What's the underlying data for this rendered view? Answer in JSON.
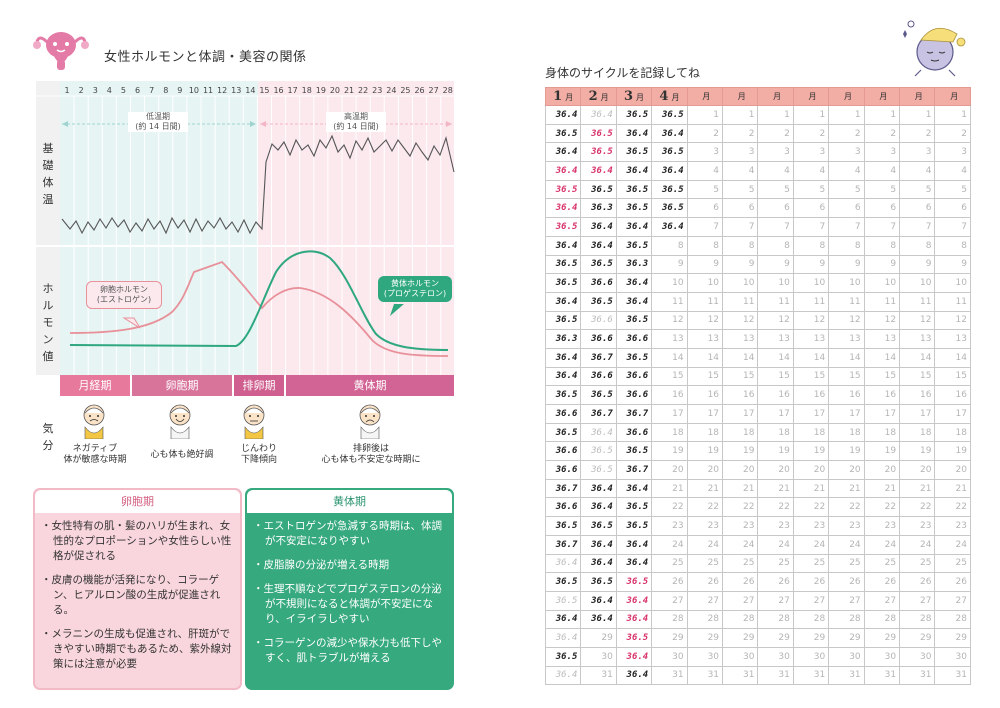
{
  "left": {
    "title": "女性ホルモンと体調・美容の関係",
    "y_labels": {
      "temp": "基礎体温",
      "hormone": "ホルモン値",
      "mood": "気分"
    },
    "days": [
      "1",
      "2",
      "3",
      "4",
      "5",
      "6",
      "7",
      "8",
      "9",
      "10",
      "11",
      "12",
      "13",
      "14",
      "15",
      "16",
      "17",
      "18",
      "19",
      "20",
      "21",
      "22",
      "23",
      "24",
      "25",
      "26",
      "27",
      "28"
    ],
    "low_phase": {
      "name": "低温期",
      "duration": "(約 14 日間)"
    },
    "high_phase": {
      "name": "高温期",
      "duration": "(約 14 日間)"
    },
    "estrogen": {
      "name": "卵胞ホルモン",
      "sub": "(エストロゲン)",
      "color": "#e8919a"
    },
    "progesterone": {
      "name": "黄体ホルモン",
      "sub": "(プロゲステロン)",
      "color": "#2fa880"
    },
    "phases": [
      "月経期",
      "卵胞期",
      "排卵期",
      "黄体期"
    ],
    "moods": [
      {
        "line1": "ネガティブ",
        "line2": "体が敏感な時期"
      },
      {
        "line1": "心も体も絶好調",
        "line2": ""
      },
      {
        "line1": "じんわり",
        "line2": "下降傾向"
      },
      {
        "line1": "排卵後は",
        "line2": "心も体も不安定な時期に"
      }
    ],
    "follicular_card": {
      "title": "卵胞期",
      "items": [
        "・女性特有の肌・髪のハリが生まれ、女性的なプロポーションや女性らしい性格が促される",
        "・皮膚の機能が活発になり、コラーゲン、ヒアルロン酸の生成が促進される。",
        "・メラニンの生成も促進され、肝斑ができやすい時期でもあるため、紫外線対策には注意が必要"
      ]
    },
    "luteal_card": {
      "title": "黄体期",
      "items": [
        "・エストロゲンが急減する時期は、体調が不安定になりやすい",
        "・皮脂腺の分泌が増える時期",
        "・生理不順などでプロゲステロンの分泌が不規則になると体調が不安定になり、イライラしやすい",
        "・コラーゲンの減少や保水力も低下しやすく、肌トラブルが増える"
      ]
    }
  },
  "right": {
    "title": "身体のサイクルを記録してね",
    "month_suffix": "月",
    "months": [
      "1",
      "2",
      "3",
      "4",
      "",
      "",
      "",
      "",
      "",
      "",
      "",
      ""
    ],
    "temps": [
      [
        "36.4",
        "36.4",
        "36.5",
        "36.5"
      ],
      [
        "36.5",
        "36.5",
        "36.4",
        "36.4"
      ],
      [
        "36.4",
        "36.5",
        "36.5",
        "36.5"
      ],
      [
        "36.4",
        "36.4",
        "36.4",
        "36.4"
      ],
      [
        "36.5",
        "36.5",
        "36.5",
        "36.5"
      ],
      [
        "36.4",
        "36.3",
        "36.5",
        "36.5"
      ],
      [
        "36.5",
        "36.4",
        "36.4",
        "36.4"
      ],
      [
        "36.4",
        "36.4",
        "36.5",
        ""
      ],
      [
        "36.5",
        "36.5",
        "36.3",
        ""
      ],
      [
        "36.5",
        "36.6",
        "36.4",
        ""
      ],
      [
        "36.4",
        "36.5",
        "36.4",
        ""
      ],
      [
        "36.5",
        "36.6",
        "36.5",
        ""
      ],
      [
        "36.3",
        "36.6",
        "36.6",
        ""
      ],
      [
        "36.4",
        "36.7",
        "36.5",
        ""
      ],
      [
        "36.4",
        "36.6",
        "36.6",
        ""
      ],
      [
        "36.5",
        "36.5",
        "36.6",
        ""
      ],
      [
        "36.6",
        "36.7",
        "36.7",
        ""
      ],
      [
        "36.5",
        "36.4",
        "36.6",
        ""
      ],
      [
        "36.6",
        "36.5",
        "36.5",
        ""
      ],
      [
        "36.6",
        "36.5",
        "36.7",
        ""
      ],
      [
        "36.7",
        "36.4",
        "36.4",
        ""
      ],
      [
        "36.6",
        "36.4",
        "36.5",
        ""
      ],
      [
        "36.5",
        "36.5",
        "36.5",
        ""
      ],
      [
        "36.7",
        "36.4",
        "36.4",
        ""
      ],
      [
        "36.4",
        "36.4",
        "36.4",
        ""
      ],
      [
        "36.5",
        "36.5",
        "36.5",
        ""
      ],
      [
        "36.5",
        "36.4",
        "36.4",
        ""
      ],
      [
        "36.4",
        "36.4",
        "36.4",
        ""
      ],
      [
        "36.4",
        "",
        "36.5",
        ""
      ],
      [
        "36.5",
        "",
        "36.4",
        ""
      ],
      [
        "36.4",
        "",
        "36.4",
        ""
      ]
    ],
    "pink_cells": [
      "3-0",
      "0-1",
      "1-1",
      "2-1",
      "3-1",
      "4-0",
      "5-0",
      "6-0",
      "25-2",
      "26-2",
      "27-2",
      "28-2",
      "29-2"
    ],
    "faded_cells": [
      "0-1",
      "11-1",
      "17-1",
      "18-1",
      "19-1",
      "24-0",
      "26-0",
      "28-0",
      "30-0"
    ]
  }
}
